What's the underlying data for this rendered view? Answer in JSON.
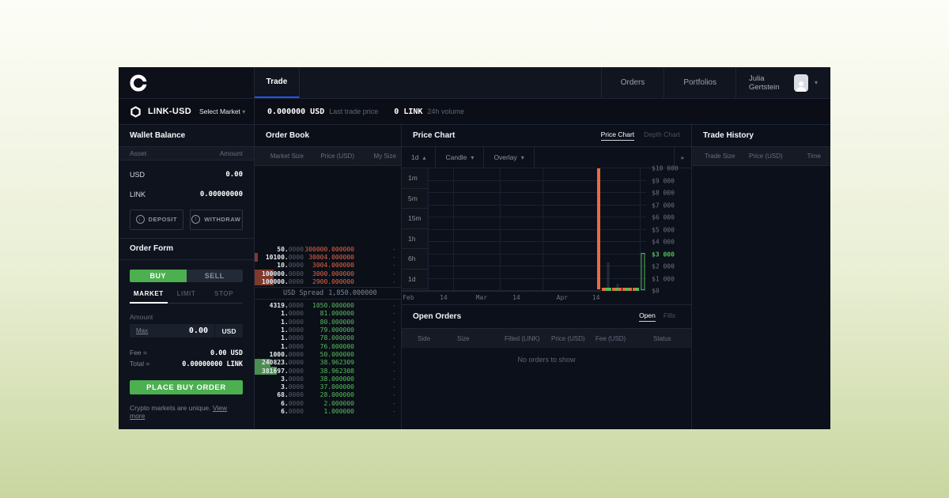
{
  "nav": {
    "trade_tab": "Trade",
    "orders": "Orders",
    "portfolios": "Portfolios",
    "user_name": "Julia Gertstein"
  },
  "market_bar": {
    "pair": "LINK-USD",
    "select_market": "Select Market",
    "last_price": "0.000000 USD",
    "last_price_label": "Last trade price",
    "volume": "0 LINK",
    "volume_label": "24h volume"
  },
  "wallet": {
    "title": "Wallet Balance",
    "col_asset": "Asset",
    "col_amount": "Amount",
    "rows": [
      {
        "asset": "USD",
        "amount": "0.00"
      },
      {
        "asset": "LINK",
        "amount": "0.00000000"
      }
    ],
    "deposit": "DEPOSIT",
    "withdraw": "WITHDRAW"
  },
  "order_form": {
    "title": "Order Form",
    "buy": "BUY",
    "sell": "SELL",
    "market": "MARKET",
    "limit": "LIMIT",
    "stop": "STOP",
    "amount_label": "Amount",
    "max": "Max",
    "amount_value": "0.00",
    "amount_unit": "USD",
    "fee_label": "Fee =",
    "fee_value": "0.00 USD",
    "total_label": "Total =",
    "total_value": "0.00000000 LINK",
    "submit": "PLACE BUY ORDER",
    "footer_text": "Crypto markets are unique.",
    "footer_link": "View more"
  },
  "order_book": {
    "title": "Order Book",
    "columns": [
      "Market Size",
      "Price (USD)",
      "My Size"
    ],
    "asks": [
      {
        "si": "50.",
        "sd": "0000",
        "p": "300000.000000",
        "my": "-",
        "depth": 0
      },
      {
        "si": "10100.",
        "sd": "0000",
        "p": "30004.000000",
        "my": "-",
        "depth": 4
      },
      {
        "si": "10.",
        "sd": "0000",
        "p": "3004.000000",
        "my": "-",
        "depth": 0
      },
      {
        "si": "100000.",
        "sd": "0000",
        "p": "3000.000000",
        "my": "-",
        "depth": 24
      },
      {
        "si": "100000.",
        "sd": "0000",
        "p": "2900.000000",
        "my": "-",
        "depth": 24
      }
    ],
    "spread_label": "USD Spread",
    "spread_value": "1,850.000000",
    "bids": [
      {
        "si": "4319.",
        "sd": "0000",
        "p": "1050.000000",
        "my": "-",
        "depth": 0
      },
      {
        "si": "1.",
        "sd": "0000",
        "p": "81.000000",
        "my": "-",
        "depth": 0
      },
      {
        "si": "1.",
        "sd": "0000",
        "p": "80.000000",
        "my": "-",
        "depth": 0
      },
      {
        "si": "1.",
        "sd": "0000",
        "p": "79.000000",
        "my": "-",
        "depth": 0
      },
      {
        "si": "1.",
        "sd": "0000",
        "p": "78.000000",
        "my": "-",
        "depth": 0
      },
      {
        "si": "1.",
        "sd": "0000",
        "p": "76.000000",
        "my": "-",
        "depth": 0
      },
      {
        "si": "1000.",
        "sd": "0000",
        "p": "50.000000",
        "my": "-",
        "depth": 0
      },
      {
        "si": "240823.",
        "sd": "0000",
        "p": "38.962309",
        "my": "-",
        "depth": 20
      },
      {
        "si": "381697.",
        "sd": "0000",
        "p": "38.962308",
        "my": "-",
        "depth": 28
      },
      {
        "si": "3.",
        "sd": "0000",
        "p": "38.000000",
        "my": "-",
        "depth": 0
      },
      {
        "si": "3.",
        "sd": "0000",
        "p": "37.000000",
        "my": "-",
        "depth": 0
      },
      {
        "si": "68.",
        "sd": "0000",
        "p": "28.000000",
        "my": "-",
        "depth": 0
      },
      {
        "si": "6.",
        "sd": "0000",
        "p": "2.000000",
        "my": "-",
        "depth": 0
      },
      {
        "si": "6.",
        "sd": "0000",
        "p": "1.000000",
        "my": "-",
        "depth": 0
      }
    ]
  },
  "price_chart": {
    "title": "Price Chart",
    "tab_price": "Price Chart",
    "tab_depth": "Depth Chart",
    "interval": "1d",
    "candle_menu": "Candle",
    "overlay_menu": "Overlay",
    "timeframes": [
      "1m",
      "5m",
      "15m",
      "1h",
      "6h",
      "1d"
    ]
  },
  "chart_data": {
    "type": "candlestick",
    "title": "LINK-USD 1d price chart",
    "ylim": [
      0,
      10000
    ],
    "grid": true,
    "ylabels": [
      "$10 000",
      "$9 000",
      "$8 000",
      "$7 000",
      "$6 000",
      "$5 000",
      "$4 000",
      "$3 000",
      "$2 000",
      "$1 000",
      "$0"
    ],
    "highlight_ylabel": "$3 000",
    "xlabels": [
      {
        "t": "Feb",
        "x": 0.033
      },
      {
        "t": "14",
        "x": 0.21
      },
      {
        "t": "Mar",
        "x": 0.4
      },
      {
        "t": "14",
        "x": 0.575
      },
      {
        "t": "Apr",
        "x": 0.805
      },
      {
        "t": "14",
        "x": 0.975
      }
    ],
    "candles": [
      {
        "x": 0.805,
        "low": 120,
        "high": 10000,
        "style": "solid",
        "side": "sell",
        "w": 4
      },
      {
        "x": 0.824,
        "low": 0,
        "high": 260,
        "style": "solid",
        "side": "sell",
        "w": 4
      },
      {
        "x": 0.838,
        "low": 0,
        "high": 260,
        "style": "solid",
        "side": "buy",
        "w": 4
      },
      {
        "x": 0.852,
        "low": 0,
        "high": 260,
        "style": "solid",
        "side": "buy",
        "w": 4
      },
      {
        "x": 0.866,
        "low": 0,
        "high": 260,
        "style": "solid",
        "side": "sell",
        "w": 4
      },
      {
        "x": 0.88,
        "low": 0,
        "high": 260,
        "style": "solid",
        "side": "buy",
        "w": 4
      },
      {
        "x": 0.894,
        "low": 0,
        "high": 260,
        "style": "solid",
        "side": "sell",
        "w": 4
      },
      {
        "x": 0.908,
        "low": 0,
        "high": 260,
        "style": "solid",
        "side": "sell",
        "w": 4
      },
      {
        "x": 0.922,
        "low": 0,
        "high": 260,
        "style": "solid",
        "side": "buy",
        "w": 4
      },
      {
        "x": 0.936,
        "low": 0,
        "high": 260,
        "style": "solid",
        "side": "sell",
        "w": 4
      },
      {
        "x": 0.95,
        "low": 0,
        "high": 260,
        "style": "solid",
        "side": "sell",
        "w": 4
      },
      {
        "x": 0.964,
        "low": 0,
        "high": 260,
        "style": "solid",
        "side": "buy",
        "w": 4
      },
      {
        "x": 0.988,
        "low": 40,
        "high": 3100,
        "style": "hollow",
        "side": "buy",
        "w": 5
      }
    ],
    "volume_bars": [
      {
        "x": 0.845,
        "value": 2300
      },
      {
        "x": 0.885,
        "value": 600
      }
    ]
  },
  "open_orders": {
    "title": "Open Orders",
    "tab_open": "Open",
    "tab_fills": "Fills",
    "columns": [
      "Side",
      "Size",
      "Filled (LINK)",
      "Price (USD)",
      "Fee (USD)",
      "Status"
    ],
    "empty": "No orders to show"
  },
  "trade_history": {
    "title": "Trade History",
    "columns": [
      "Trade Size",
      "Price (USD)",
      "Time"
    ]
  },
  "colors": {
    "accent_blue": "#1c55f5",
    "buy_green": "#4caf50",
    "bid_green": "#57bd5e",
    "ask_orange": "#e5664a",
    "candle_sell": "#eb6a41",
    "candle_buy": "#4fbd58",
    "depth_sell": "#7e3a2c",
    "depth_buy": "#4c8d51"
  }
}
